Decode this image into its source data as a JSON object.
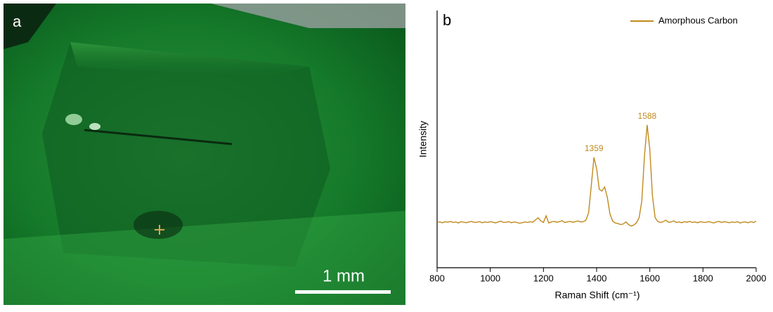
{
  "panel_a": {
    "label": "a",
    "scale_bar": "1 mm"
  },
  "chart_data": {
    "type": "line",
    "panel_label": "b",
    "xlabel": "Raman Shift (cm⁻¹)",
    "ylabel": "Intensity",
    "x": [
      800,
      810,
      820,
      830,
      840,
      850,
      860,
      870,
      880,
      890,
      900,
      910,
      920,
      930,
      940,
      950,
      960,
      970,
      980,
      990,
      1000,
      1010,
      1020,
      1030,
      1040,
      1050,
      1060,
      1070,
      1080,
      1090,
      1100,
      1110,
      1120,
      1130,
      1140,
      1150,
      1160,
      1170,
      1180,
      1190,
      1200,
      1210,
      1220,
      1230,
      1240,
      1250,
      1260,
      1270,
      1280,
      1290,
      1300,
      1310,
      1320,
      1330,
      1340,
      1350,
      1360,
      1370,
      1380,
      1390,
      1400,
      1410,
      1420,
      1430,
      1440,
      1450,
      1460,
      1470,
      1480,
      1490,
      1500,
      1510,
      1520,
      1530,
      1540,
      1550,
      1560,
      1570,
      1580,
      1590,
      1600,
      1610,
      1620,
      1630,
      1640,
      1650,
      1660,
      1670,
      1680,
      1690,
      1700,
      1710,
      1720,
      1730,
      1740,
      1750,
      1760,
      1770,
      1780,
      1790,
      1800,
      1810,
      1820,
      1830,
      1840,
      1850,
      1860,
      1870,
      1880,
      1890,
      1900,
      1910,
      1920,
      1930,
      1940,
      1950,
      1960,
      1970,
      1980,
      1990,
      2000
    ],
    "series": [
      {
        "name": "Amorphous Carbon",
        "color": "#c08a1e",
        "values": [
          17.6,
          17.8,
          17.5,
          17.9,
          17.7,
          18.0,
          17.6,
          17.8,
          17.4,
          17.9,
          17.7,
          17.5,
          17.8,
          18.0,
          17.6,
          17.7,
          17.9,
          17.5,
          17.8,
          17.6,
          17.9,
          17.7,
          17.4,
          17.8,
          18.1,
          17.6,
          17.7,
          17.9,
          17.5,
          17.8,
          17.6,
          17.3,
          17.5,
          17.8,
          17.6,
          17.9,
          17.7,
          18.6,
          19.4,
          18.2,
          17.6,
          20.2,
          17.4,
          17.8,
          18.0,
          17.7,
          17.9,
          18.3,
          17.6,
          17.8,
          18.0,
          17.7,
          17.9,
          18.2,
          17.8,
          17.9,
          18.5,
          21.5,
          32.0,
          42.9,
          38.5,
          30.5,
          29.8,
          31.4,
          27.5,
          21.0,
          18.2,
          17.4,
          17.2,
          16.8,
          17.0,
          17.8,
          16.8,
          16.2,
          16.6,
          17.5,
          19.5,
          26.0,
          43.5,
          55.5,
          46.0,
          28.0,
          19.5,
          18.0,
          17.6,
          17.9,
          18.5,
          17.7,
          17.8,
          18.2,
          17.6,
          17.8,
          17.5,
          17.9,
          17.7,
          18.0,
          17.6,
          17.8,
          17.5,
          17.9,
          17.7,
          17.6,
          17.9,
          17.7,
          17.4,
          17.8,
          18.0,
          17.6,
          17.9,
          17.7,
          17.5,
          17.8,
          17.6,
          17.9,
          17.4,
          17.7,
          17.8,
          17.5,
          17.9,
          17.6,
          18.1
        ]
      }
    ],
    "annotations": [
      {
        "text": "1359",
        "x": 1390
      },
      {
        "text": "1588",
        "x": 1590
      }
    ],
    "xlim": [
      800,
      2000
    ],
    "xticks": [
      800,
      1000,
      1200,
      1400,
      1600,
      1800,
      2000
    ],
    "ylim": [
      0,
      100
    ],
    "legend": "upper right"
  }
}
